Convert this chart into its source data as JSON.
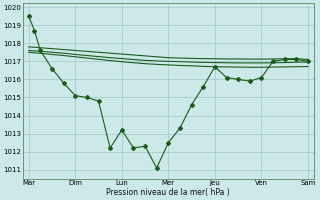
{
  "background_color": "#cce8e8",
  "grid_color": "#aacccc",
  "line_color": "#1a5c1a",
  "xlabel": "Pression niveau de la mer( hPa )",
  "ylim": [
    1010.5,
    1020.2
  ],
  "yticks": [
    1011,
    1012,
    1013,
    1014,
    1015,
    1016,
    1017,
    1018,
    1019,
    1020
  ],
  "x_labels": [
    "Mar",
    "Dim",
    "Lun",
    "Mer",
    "Jeu",
    "Ven",
    "Sam"
  ],
  "day_positions": [
    0,
    4,
    8,
    12,
    16,
    20,
    24
  ],
  "main_x": [
    0,
    0.5,
    1,
    2,
    3,
    4,
    5,
    6,
    7,
    8,
    9,
    10,
    11,
    12,
    13,
    14,
    15,
    16,
    17,
    18,
    19,
    20,
    21,
    22,
    23,
    24
  ],
  "main_y": [
    1019.5,
    1018.7,
    1017.6,
    1016.6,
    1015.8,
    1015.1,
    1015.0,
    1014.8,
    1012.2,
    1013.2,
    1012.2,
    1012.3,
    1011.1,
    1012.5,
    1013.3,
    1014.6,
    1015.6,
    1016.7,
    1016.1,
    1016.0,
    1015.9,
    1016.1,
    1017.0,
    1017.1,
    1017.1,
    1017.0
  ],
  "upper_x": [
    0,
    1,
    2,
    3,
    4,
    5,
    6,
    7,
    8,
    9,
    10,
    11,
    12,
    13,
    14,
    15,
    16,
    17,
    18,
    19,
    20,
    21,
    22,
    23,
    24
  ],
  "upper1_y": [
    1017.8,
    1017.75,
    1017.7,
    1017.65,
    1017.6,
    1017.55,
    1017.5,
    1017.45,
    1017.4,
    1017.35,
    1017.3,
    1017.25,
    1017.2,
    1017.18,
    1017.16,
    1017.15,
    1017.14,
    1017.13,
    1017.13,
    1017.12,
    1017.12,
    1017.13,
    1017.14,
    1017.15,
    1017.1
  ],
  "upper2_y": [
    1017.6,
    1017.55,
    1017.5,
    1017.45,
    1017.38,
    1017.32,
    1017.26,
    1017.2,
    1017.15,
    1017.1,
    1017.05,
    1017.02,
    1017.0,
    1016.98,
    1016.96,
    1016.94,
    1016.93,
    1016.92,
    1016.91,
    1016.91,
    1016.91,
    1016.92,
    1016.93,
    1016.95,
    1016.96
  ],
  "upper3_y": [
    1017.5,
    1017.44,
    1017.38,
    1017.32,
    1017.25,
    1017.18,
    1017.11,
    1017.04,
    1016.98,
    1016.92,
    1016.87,
    1016.83,
    1016.8,
    1016.77,
    1016.75,
    1016.72,
    1016.7,
    1016.69,
    1016.68,
    1016.67,
    1016.67,
    1016.68,
    1016.69,
    1016.7,
    1016.71
  ],
  "figsize": [
    3.2,
    2.0
  ],
  "dpi": 100
}
